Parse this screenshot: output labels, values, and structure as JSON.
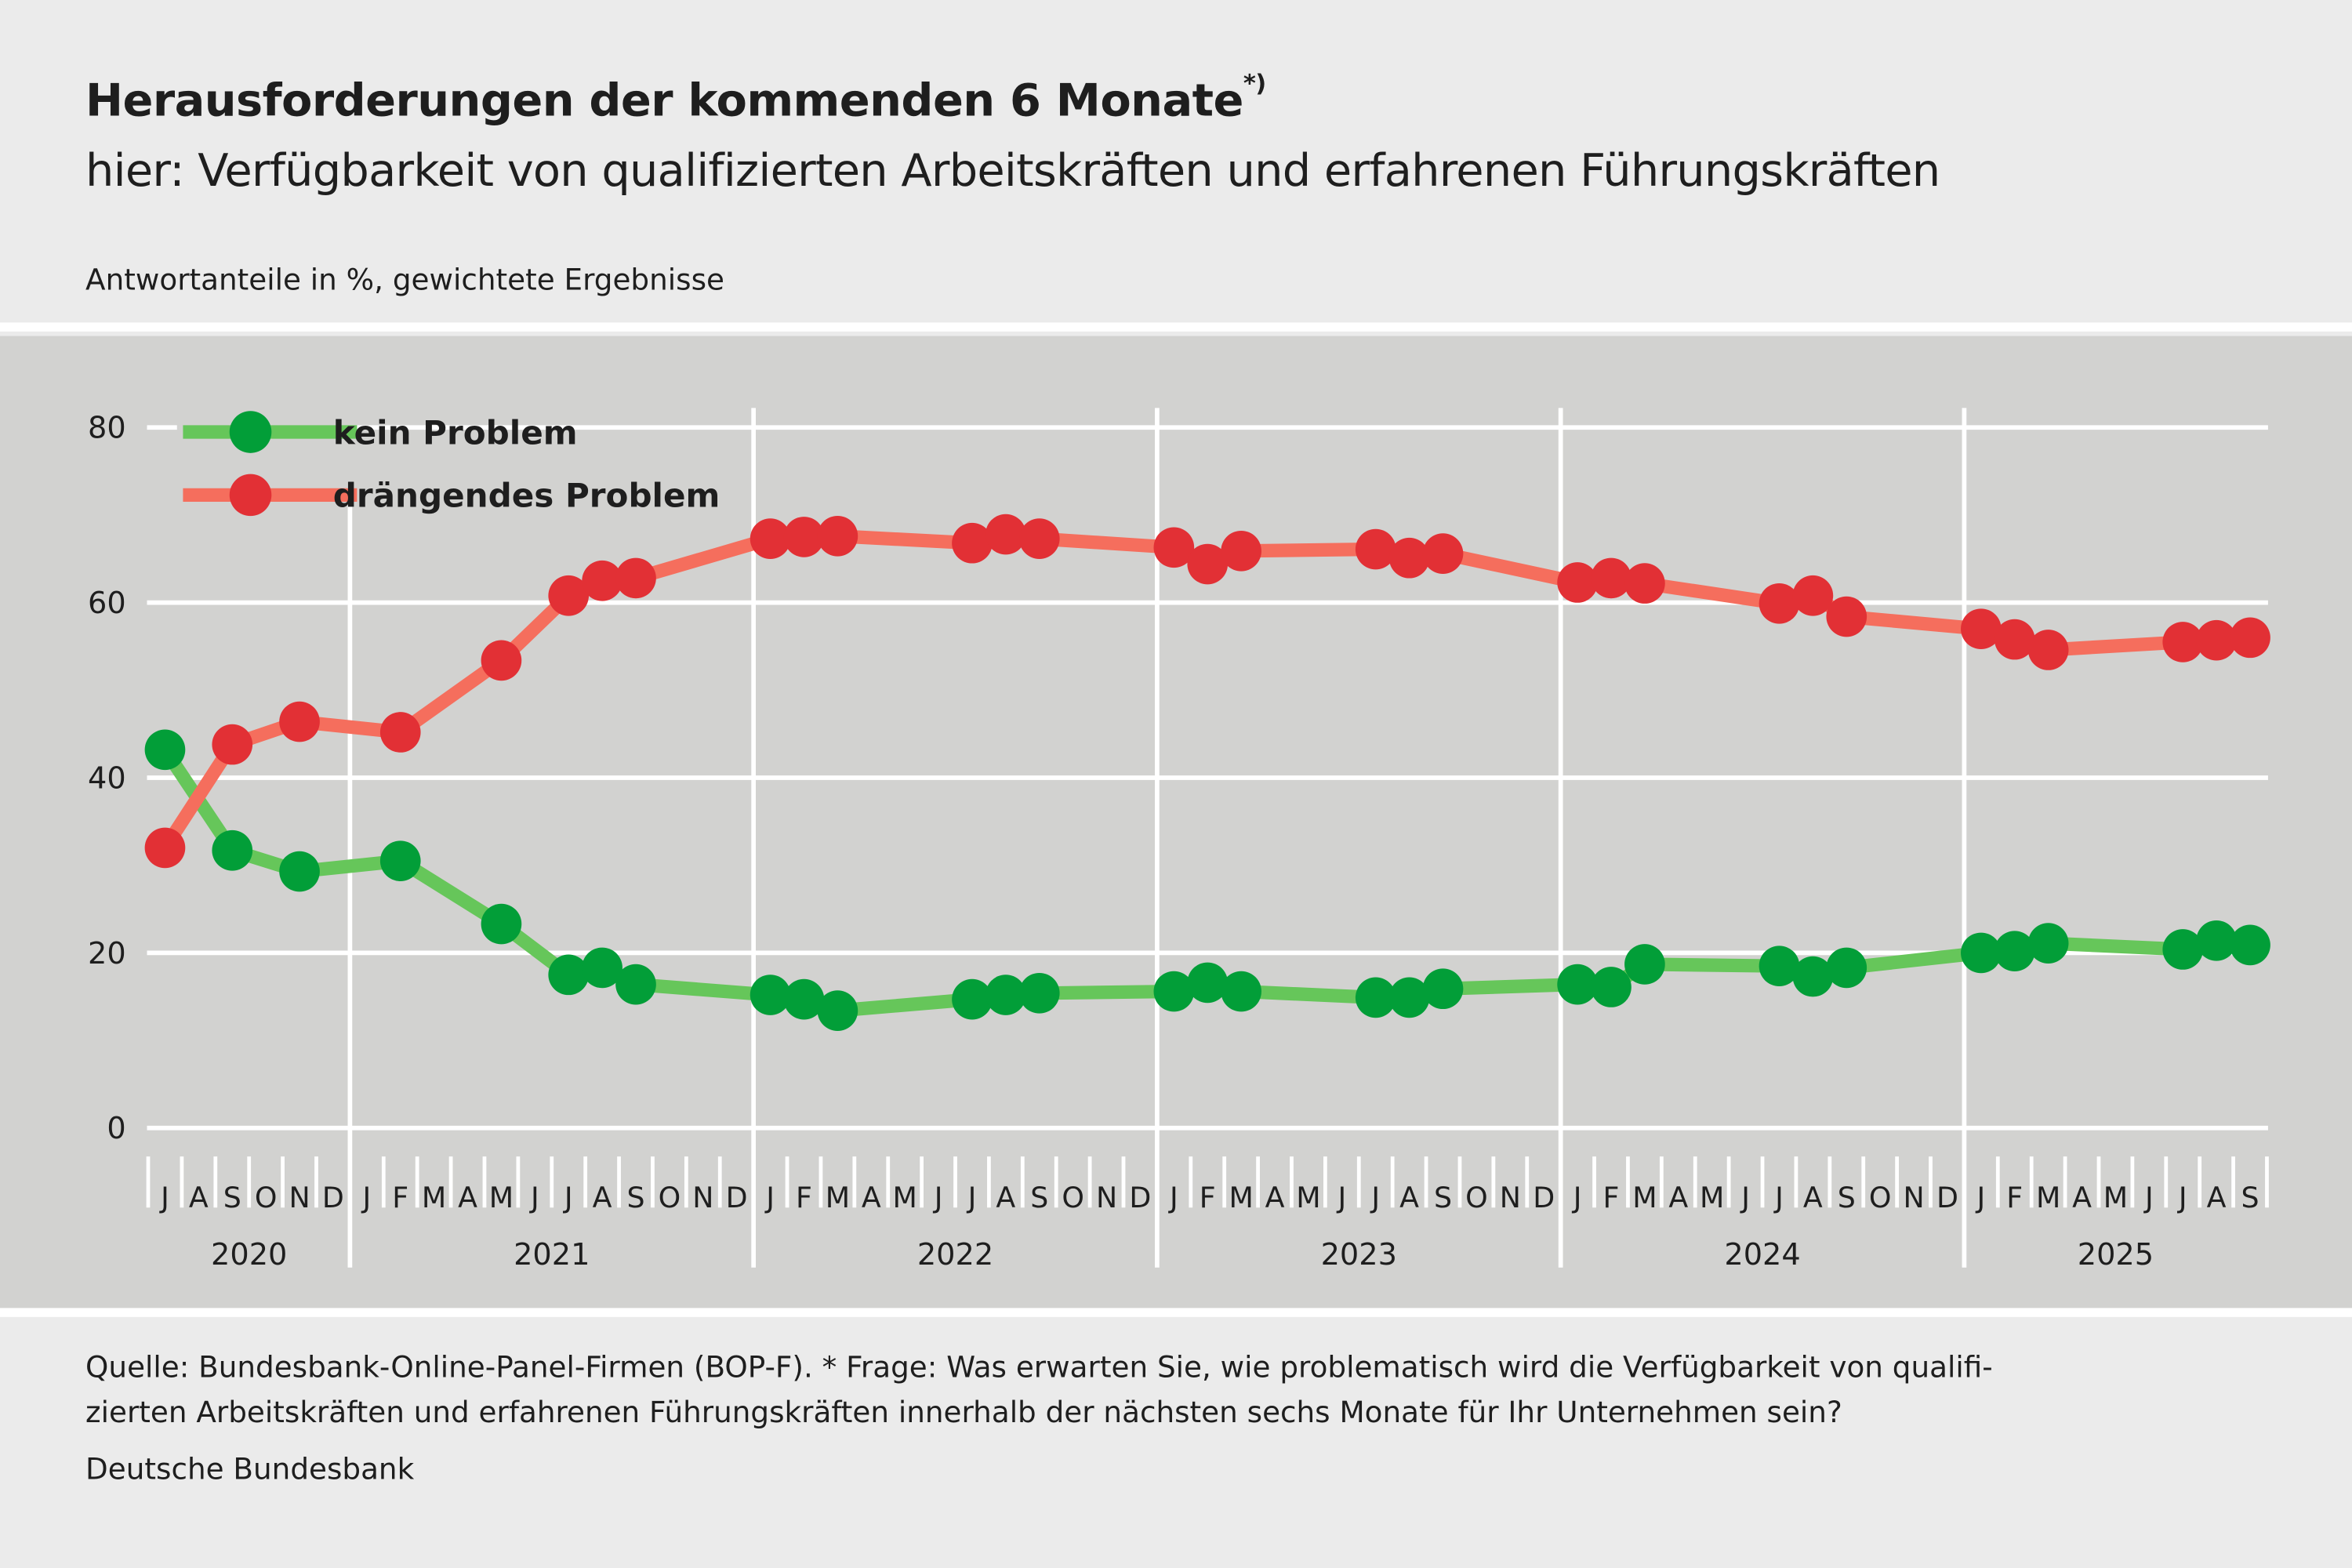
{
  "header": {
    "title": "Herausforderungen der kommenden 6 Monate",
    "title_footnote_mark": "*)",
    "subtitle": "hier: Verfügbarkeit von qualifizierten Arbeitskräften und erfahrenen Führungskräften",
    "unit_note": "Antwortanteile in %, gewichtete Ergebnisse"
  },
  "footer": {
    "source_line1": "Quelle: Bundesbank-Online-Panel-Firmen (BOP-F). * Frage: Was erwarten Sie, wie problematisch wird die Verfügbarkeit von qualifi-",
    "source_line2": "zierten Arbeitskräften und erfahrenen Führungskräften innerhalb der nächsten sechs Monate für Ihr Unternehmen sein?",
    "publisher": "Deutsche Bundesbank"
  },
  "chart_data": {
    "type": "line",
    "title": "Herausforderungen der kommenden 6 Monate",
    "ylabel": "Antwortanteile in %, gewichtete Ergebnisse",
    "ylim": [
      0,
      80
    ],
    "yticks": [
      0,
      20,
      40,
      60,
      80
    ],
    "grid": true,
    "legend_position": "top-left",
    "x_start": "2020-07",
    "x_end": "2025-09",
    "month_labels": [
      "J",
      "A",
      "S",
      "O",
      "N",
      "D",
      "J",
      "F",
      "M",
      "A",
      "M",
      "J",
      "J",
      "A",
      "S",
      "O",
      "N",
      "D",
      "J",
      "F",
      "M",
      "A",
      "M",
      "J",
      "J",
      "A",
      "S",
      "O",
      "N",
      "D",
      "J",
      "F",
      "M",
      "A",
      "M",
      "J",
      "J",
      "A",
      "S",
      "O",
      "N",
      "D",
      "J",
      "F",
      "M",
      "A",
      "M",
      "J",
      "J",
      "A",
      "S",
      "O",
      "N",
      "D",
      "J",
      "F",
      "M",
      "A",
      "M",
      "J",
      "J",
      "A",
      "S"
    ],
    "years": [
      {
        "label": "2020",
        "from": "2020-07",
        "to": "2020-12"
      },
      {
        "label": "2021",
        "from": "2021-01",
        "to": "2021-12"
      },
      {
        "label": "2022",
        "from": "2022-01",
        "to": "2022-12"
      },
      {
        "label": "2023",
        "from": "2023-01",
        "to": "2023-12"
      },
      {
        "label": "2024",
        "from": "2024-01",
        "to": "2024-12"
      },
      {
        "label": "2025",
        "from": "2025-01",
        "to": "2025-09"
      }
    ],
    "x": [
      "2020-07",
      "2020-09",
      "2020-11",
      "2021-02",
      "2021-05",
      "2021-07",
      "2021-08",
      "2021-09",
      "2022-01",
      "2022-02",
      "2022-03",
      "2022-07",
      "2022-08",
      "2022-09",
      "2023-01",
      "2023-02",
      "2023-03",
      "2023-07",
      "2023-08",
      "2023-09",
      "2024-01",
      "2024-02",
      "2024-03",
      "2024-07",
      "2024-08",
      "2024-09",
      "2025-01",
      "2025-02",
      "2025-03",
      "2025-07",
      "2025-08",
      "2025-09"
    ],
    "series": [
      {
        "name": "kein Problem",
        "line_color": "#66c65a",
        "marker_color": "#029e38",
        "values": [
          43.2,
          31.7,
          29.3,
          30.5,
          23.3,
          17.5,
          18.3,
          16.4,
          15.2,
          14.7,
          13.4,
          14.7,
          15.2,
          15.4,
          15.6,
          16.6,
          15.6,
          14.9,
          14.9,
          15.9,
          16.4,
          16.1,
          18.7,
          18.5,
          17.3,
          18.3,
          20.0,
          20.2,
          21.1,
          20.4,
          21.4,
          20.9
        ]
      },
      {
        "name": "drängendes Problem",
        "line_color": "#f56e5d",
        "marker_color": "#e23035",
        "values": [
          32.0,
          43.8,
          46.4,
          45.2,
          53.4,
          60.8,
          62.5,
          62.8,
          67.3,
          67.5,
          67.6,
          66.8,
          67.8,
          67.3,
          66.3,
          64.4,
          65.9,
          66.1,
          65.1,
          65.6,
          62.3,
          62.8,
          62.2,
          59.9,
          60.8,
          58.4,
          57.0,
          55.8,
          54.6,
          55.5,
          55.7,
          56.0
        ]
      }
    ]
  }
}
